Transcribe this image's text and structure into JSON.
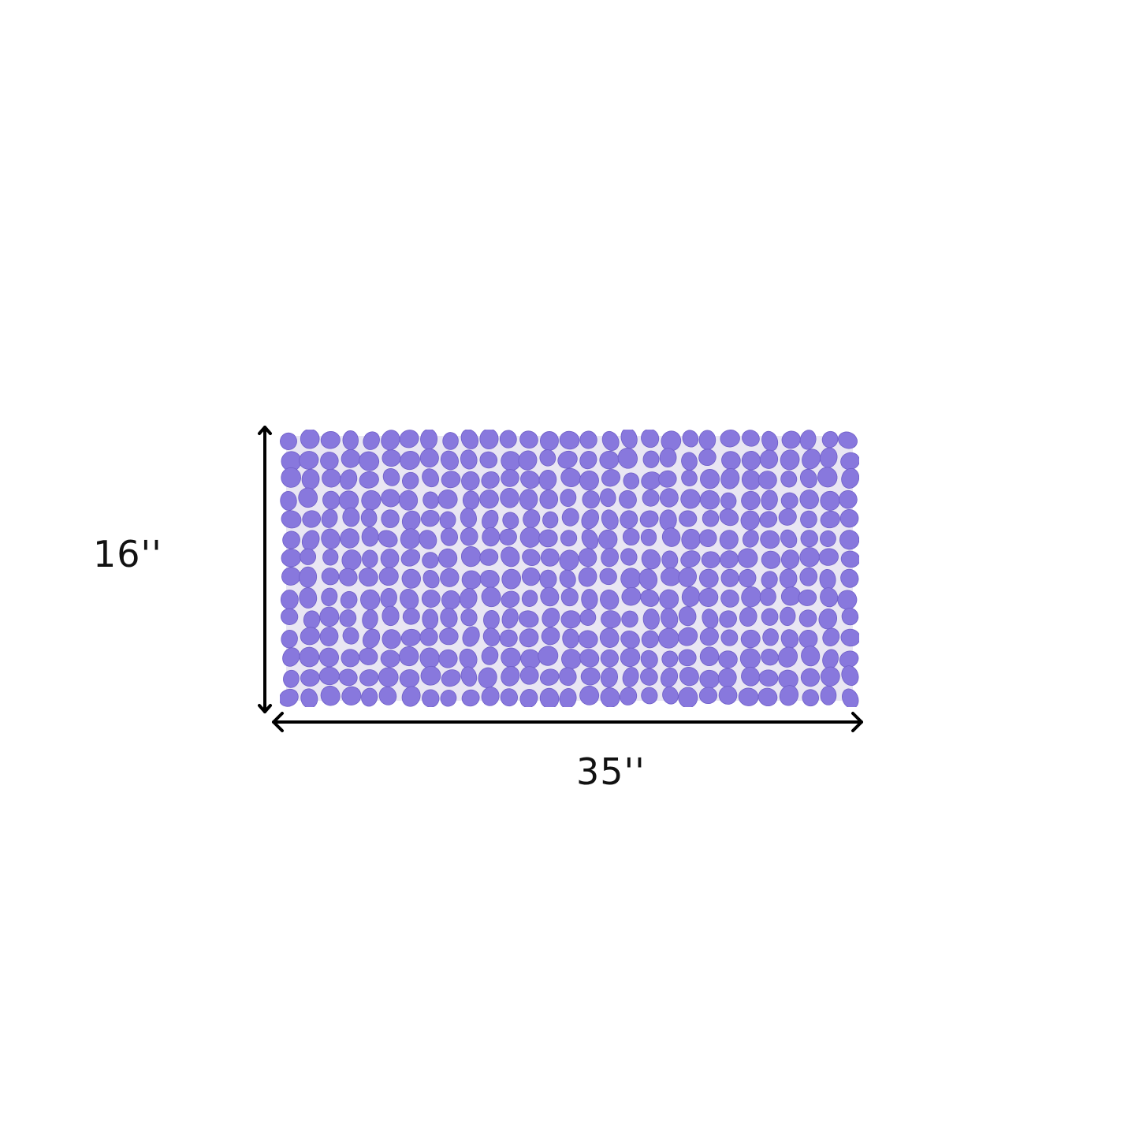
{
  "product": {
    "name_icon": "pebble-bath-mat",
    "color": "#8878dd",
    "shadow_color": "#6f5fc8",
    "gap_color": "#e9e6f3"
  },
  "dimensions": {
    "height_label": "16''",
    "width_label": "35''"
  }
}
